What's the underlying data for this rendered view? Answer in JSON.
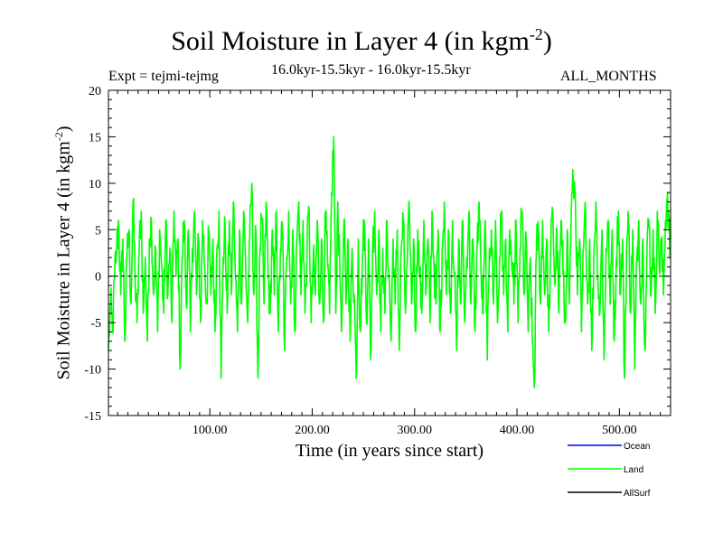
{
  "chart_data": {
    "type": "line",
    "title_main": "Soil Moisture in Layer 4 (in kgm",
    "title_sup": "-2",
    "title_close": ")",
    "subtitle_left": "Expt = tejmi-tejmg",
    "subtitle_center": "16.0kyr-15.5kyr - 16.0kyr-15.5kyr",
    "subtitle_right": "ALL_MONTHS",
    "xlabel": "Time (in years since start)",
    "ylabel_main": "Soil Moisture in Layer 4 (in kgm",
    "ylabel_sup": "-2",
    "ylabel_close": ")",
    "xlim": [
      1,
      550
    ],
    "ylim": [
      -15,
      20
    ],
    "xticks": [
      100,
      200,
      300,
      400,
      500
    ],
    "xtick_labels": [
      "100.00",
      "200.00",
      "300.00",
      "400.00",
      "500.00"
    ],
    "yticks": [
      -15,
      -10,
      -5,
      0,
      5,
      10,
      15,
      20
    ],
    "ytick_labels": [
      "-15",
      "-10",
      "-5",
      "0",
      "5",
      "10",
      "15",
      "20"
    ],
    "zero_line": true,
    "grid": false,
    "legend": [
      {
        "name": "Ocean",
        "color": "#0000ff"
      },
      {
        "name": "Land",
        "color": "#00ff00"
      },
      {
        "name": "AllSurf",
        "color": "#000000"
      }
    ],
    "series": [
      {
        "name": "Land",
        "color": "#00ff00",
        "anchors": [
          [
            1,
            -8
          ],
          [
            3,
            -3
          ],
          [
            5,
            -6
          ],
          [
            7,
            0
          ],
          [
            9,
            3
          ],
          [
            11,
            6
          ],
          [
            13,
            -2
          ],
          [
            15,
            4
          ],
          [
            17,
            -7
          ],
          [
            19,
            2
          ],
          [
            21,
            5
          ],
          [
            23,
            -3
          ],
          [
            25,
            8
          ],
          [
            27,
            0
          ],
          [
            29,
            -5
          ],
          [
            31,
            3
          ],
          [
            33,
            7
          ],
          [
            35,
            -4
          ],
          [
            37,
            2
          ],
          [
            39,
            -7
          ],
          [
            41,
            4
          ],
          [
            43,
            6
          ],
          [
            45,
            -2
          ],
          [
            47,
            3
          ],
          [
            49,
            -6
          ],
          [
            51,
            5
          ],
          [
            53,
            1
          ],
          [
            55,
            -4
          ],
          [
            57,
            6
          ],
          [
            59,
            -2
          ],
          [
            61,
            3
          ],
          [
            63,
            -5
          ],
          [
            65,
            7
          ],
          [
            67,
            0
          ],
          [
            69,
            4
          ],
          [
            71,
            -10
          ],
          [
            73,
            2
          ],
          [
            75,
            6
          ],
          [
            77,
            -3
          ],
          [
            79,
            5
          ],
          [
            81,
            -6
          ],
          [
            83,
            3
          ],
          [
            85,
            7
          ],
          [
            87,
            -2
          ],
          [
            89,
            4
          ],
          [
            91,
            -5
          ],
          [
            93,
            6
          ],
          [
            95,
            1
          ],
          [
            97,
            -3
          ],
          [
            99,
            5
          ],
          [
            101,
            -2
          ],
          [
            103,
            4
          ],
          [
            105,
            -6
          ],
          [
            107,
            3
          ],
          [
            109,
            7
          ],
          [
            111,
            -11
          ],
          [
            113,
            2
          ],
          [
            115,
            5
          ],
          [
            117,
            -4
          ],
          [
            119,
            6
          ],
          [
            121,
            -2
          ],
          [
            123,
            8
          ],
          [
            125,
            0
          ],
          [
            127,
            -6
          ],
          [
            129,
            5
          ],
          [
            131,
            -3
          ],
          [
            133,
            7
          ],
          [
            135,
            1
          ],
          [
            137,
            -5
          ],
          [
            139,
            4
          ],
          [
            141,
            10
          ],
          [
            143,
            -2
          ],
          [
            145,
            5
          ],
          [
            147,
            -11
          ],
          [
            149,
            3
          ],
          [
            151,
            6
          ],
          [
            153,
            -3
          ],
          [
            155,
            8
          ],
          [
            157,
            0
          ],
          [
            159,
            -4
          ],
          [
            161,
            5
          ],
          [
            163,
            -2
          ],
          [
            165,
            7
          ],
          [
            167,
            -6
          ],
          [
            169,
            3
          ],
          [
            171,
            5
          ],
          [
            173,
            -8
          ],
          [
            175,
            2
          ],
          [
            177,
            7
          ],
          [
            179,
            -3
          ],
          [
            181,
            5
          ],
          [
            183,
            -6
          ],
          [
            185,
            4
          ],
          [
            187,
            8
          ],
          [
            189,
            -2
          ],
          [
            191,
            6
          ],
          [
            193,
            -4
          ],
          [
            195,
            3
          ],
          [
            197,
            7
          ],
          [
            199,
            -5
          ],
          [
            201,
            2
          ],
          [
            203,
            -2
          ],
          [
            205,
            6
          ],
          [
            207,
            -3
          ],
          [
            209,
            4
          ],
          [
            211,
            -5
          ],
          [
            213,
            7
          ],
          [
            215,
            1
          ],
          [
            217,
            -4
          ],
          [
            219,
            9
          ],
          [
            221,
            15
          ],
          [
            223,
            -4
          ],
          [
            225,
            8
          ],
          [
            227,
            0
          ],
          [
            229,
            -5
          ],
          [
            231,
            6
          ],
          [
            233,
            -3
          ],
          [
            235,
            4
          ],
          [
            237,
            -7
          ],
          [
            239,
            3
          ],
          [
            241,
            -2
          ],
          [
            243,
            -11
          ],
          [
            245,
            4
          ],
          [
            247,
            -6
          ],
          [
            249,
            2
          ],
          [
            251,
            6
          ],
          [
            253,
            -5
          ],
          [
            255,
            4
          ],
          [
            257,
            -9
          ],
          [
            259,
            3
          ],
          [
            261,
            7
          ],
          [
            263,
            -2
          ],
          [
            265,
            5
          ],
          [
            267,
            -6
          ],
          [
            269,
            3
          ],
          [
            271,
            -4
          ],
          [
            273,
            6
          ],
          [
            275,
            0
          ],
          [
            277,
            -7
          ],
          [
            279,
            4
          ],
          [
            281,
            -3
          ],
          [
            283,
            5
          ],
          [
            285,
            -8
          ],
          [
            287,
            3
          ],
          [
            289,
            6
          ],
          [
            291,
            -4
          ],
          [
            293,
            2
          ],
          [
            295,
            7
          ],
          [
            297,
            -3
          ],
          [
            299,
            4
          ],
          [
            301,
            -6
          ],
          [
            303,
            5
          ],
          [
            305,
            0
          ],
          [
            307,
            -4
          ],
          [
            309,
            6
          ],
          [
            311,
            -2
          ],
          [
            313,
            4
          ],
          [
            315,
            -5
          ],
          [
            317,
            7
          ],
          [
            319,
            1
          ],
          [
            321,
            -3
          ],
          [
            323,
            5
          ],
          [
            325,
            -6
          ],
          [
            327,
            3
          ],
          [
            329,
            8
          ],
          [
            331,
            -2
          ],
          [
            333,
            5
          ],
          [
            335,
            -4
          ],
          [
            337,
            6
          ],
          [
            339,
            0
          ],
          [
            341,
            -8
          ],
          [
            343,
            4
          ],
          [
            345,
            -3
          ],
          [
            347,
            6
          ],
          [
            349,
            -5
          ],
          [
            351,
            2
          ],
          [
            353,
            7
          ],
          [
            355,
            -3
          ],
          [
            357,
            4
          ],
          [
            359,
            -6
          ],
          [
            361,
            3
          ],
          [
            363,
            8
          ],
          [
            365,
            0
          ],
          [
            367,
            -4
          ],
          [
            369,
            6
          ],
          [
            371,
            -9
          ],
          [
            373,
            3
          ],
          [
            375,
            5
          ],
          [
            377,
            -3
          ],
          [
            379,
            6
          ],
          [
            381,
            -5
          ],
          [
            383,
            2
          ],
          [
            385,
            7
          ],
          [
            387,
            -2
          ],
          [
            389,
            4
          ],
          [
            391,
            -6
          ],
          [
            393,
            5
          ],
          [
            395,
            1
          ],
          [
            397,
            -3
          ],
          [
            399,
            6
          ],
          [
            401,
            -5
          ],
          [
            403,
            3
          ],
          [
            405,
            7
          ],
          [
            407,
            -2
          ],
          [
            409,
            4
          ],
          [
            411,
            -6
          ],
          [
            413,
            2
          ],
          [
            415,
            -7
          ],
          [
            417,
            -12
          ],
          [
            419,
            3
          ],
          [
            421,
            5
          ],
          [
            423,
            -3
          ],
          [
            425,
            6
          ],
          [
            427,
            -2
          ],
          [
            429,
            4
          ],
          [
            431,
            -6
          ],
          [
            433,
            3
          ],
          [
            435,
            7
          ],
          [
            437,
            -1
          ],
          [
            439,
            5
          ],
          [
            441,
            -4
          ],
          [
            443,
            6
          ],
          [
            445,
            0
          ],
          [
            447,
            -5
          ],
          [
            449,
            5
          ],
          [
            451,
            -3
          ],
          [
            453,
            7
          ],
          [
            455,
            10
          ],
          [
            457,
            9
          ],
          [
            459,
            -2
          ],
          [
            461,
            4
          ],
          [
            463,
            -6
          ],
          [
            465,
            3
          ],
          [
            467,
            7
          ],
          [
            469,
            -3
          ],
          [
            471,
            4
          ],
          [
            473,
            -8
          ],
          [
            475,
            2
          ],
          [
            477,
            8
          ],
          [
            479,
            0
          ],
          [
            481,
            -4
          ],
          [
            483,
            5
          ],
          [
            485,
            -9
          ],
          [
            487,
            3
          ],
          [
            489,
            6
          ],
          [
            491,
            -3
          ],
          [
            493,
            5
          ],
          [
            495,
            -7
          ],
          [
            497,
            2
          ],
          [
            499,
            7
          ],
          [
            501,
            -2
          ],
          [
            503,
            4
          ],
          [
            505,
            -11
          ],
          [
            507,
            3
          ],
          [
            509,
            6
          ],
          [
            511,
            -4
          ],
          [
            513,
            5
          ],
          [
            515,
            -10
          ],
          [
            517,
            2
          ],
          [
            519,
            6
          ],
          [
            521,
            -3
          ],
          [
            523,
            4
          ],
          [
            525,
            -8
          ],
          [
            527,
            3
          ],
          [
            529,
            6
          ],
          [
            531,
            -2
          ],
          [
            533,
            5
          ],
          [
            535,
            -4
          ],
          [
            537,
            7
          ],
          [
            539,
            1
          ],
          [
            541,
            4
          ],
          [
            543,
            -2
          ],
          [
            545,
            6
          ],
          [
            547,
            9
          ],
          [
            549,
            3
          ],
          [
            550,
            4
          ]
        ]
      }
    ]
  }
}
